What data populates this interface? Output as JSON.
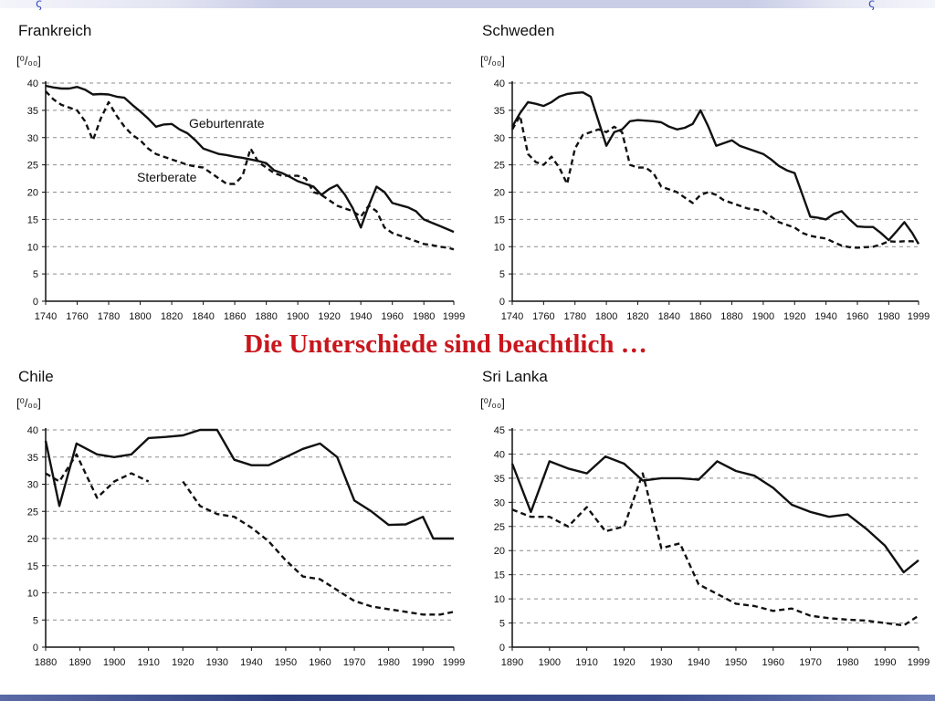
{
  "slide": {
    "caption": "Die Unterschiede sind beachtlich …",
    "colors": {
      "caption": "#c8161d",
      "line": "#111111",
      "grid": "#8c8c8c",
      "bar": "#2c3e7e"
    }
  },
  "chart_data": [
    {
      "type": "line",
      "title": "Frankreich",
      "unit": "[⁰/₀₀]",
      "xlim": [
        1740,
        1999
      ],
      "ylim": [
        0,
        40
      ],
      "x_ticks": [
        1740,
        1760,
        1780,
        1800,
        1820,
        1840,
        1860,
        1880,
        1900,
        1920,
        1940,
        1960,
        1980,
        1999
      ],
      "y_ticks": [
        0,
        5,
        10,
        15,
        20,
        25,
        30,
        35,
        40
      ],
      "grid": "horizontal dashed",
      "annotations": [
        "Geburtenrate",
        "Sterberate"
      ],
      "series": [
        {
          "name": "Geburtenrate",
          "style": "solid",
          "x": [
            1740,
            1745,
            1750,
            1755,
            1760,
            1765,
            1770,
            1775,
            1780,
            1785,
            1790,
            1795,
            1800,
            1805,
            1810,
            1815,
            1820,
            1825,
            1830,
            1835,
            1840,
            1845,
            1850,
            1855,
            1860,
            1865,
            1870,
            1875,
            1880,
            1885,
            1890,
            1895,
            1900,
            1905,
            1910,
            1915,
            1920,
            1925,
            1930,
            1935,
            1940,
            1945,
            1950,
            1955,
            1960,
            1965,
            1970,
            1975,
            1980,
            1985,
            1990,
            1995,
            1999
          ],
          "y": [
            39.5,
            39.2,
            39.0,
            39.0,
            39.3,
            38.8,
            37.9,
            38.0,
            37.9,
            37.5,
            37.3,
            36.0,
            34.8,
            33.5,
            32.0,
            32.4,
            32.5,
            31.5,
            30.8,
            29.5,
            28.0,
            27.5,
            27.0,
            26.8,
            26.5,
            26.3,
            26.0,
            25.7,
            25.3,
            24.0,
            23.5,
            22.8,
            22.0,
            21.5,
            21.0,
            19.5,
            20.6,
            21.3,
            19.5,
            17.0,
            13.5,
            17.5,
            21.0,
            20.0,
            18.0,
            17.6,
            17.2,
            16.5,
            15.0,
            14.4,
            13.8,
            13.2,
            12.7
          ]
        },
        {
          "name": "Sterberate",
          "style": "dashed",
          "x": [
            1740,
            1745,
            1750,
            1755,
            1760,
            1765,
            1770,
            1775,
            1780,
            1785,
            1790,
            1795,
            1800,
            1805,
            1810,
            1815,
            1820,
            1825,
            1830,
            1835,
            1840,
            1845,
            1850,
            1855,
            1860,
            1865,
            1870,
            1875,
            1880,
            1885,
            1890,
            1895,
            1900,
            1905,
            1910,
            1915,
            1920,
            1925,
            1930,
            1935,
            1940,
            1945,
            1950,
            1955,
            1960,
            1965,
            1970,
            1975,
            1980,
            1985,
            1990,
            1995,
            1999
          ],
          "y": [
            38.5,
            37.0,
            36.0,
            35.5,
            35.0,
            33.0,
            29.5,
            33.5,
            36.5,
            34.0,
            32.0,
            30.5,
            29.5,
            28.0,
            27.0,
            26.5,
            26.0,
            25.5,
            25.0,
            24.7,
            24.5,
            23.5,
            22.5,
            21.5,
            21.5,
            23.0,
            28.0,
            25.5,
            24.5,
            23.5,
            23.0,
            23.0,
            23.0,
            22.5,
            20.0,
            19.5,
            18.5,
            17.5,
            17.0,
            16.5,
            15.5,
            17.5,
            16.5,
            13.5,
            12.5,
            12.0,
            11.5,
            11.0,
            10.5,
            10.3,
            10.0,
            9.8,
            9.5
          ]
        }
      ]
    },
    {
      "type": "line",
      "title": "Schweden",
      "unit": "[⁰/₀₀]",
      "xlim": [
        1740,
        1999
      ],
      "ylim": [
        0,
        40
      ],
      "x_ticks": [
        1740,
        1760,
        1780,
        1800,
        1820,
        1840,
        1860,
        1880,
        1900,
        1920,
        1940,
        1960,
        1980,
        1999
      ],
      "y_ticks": [
        0,
        5,
        10,
        15,
        20,
        25,
        30,
        35,
        40
      ],
      "grid": "horizontal dashed",
      "series": [
        {
          "name": "Geburtenrate",
          "style": "solid",
          "x": [
            1740,
            1745,
            1750,
            1755,
            1760,
            1765,
            1770,
            1775,
            1780,
            1785,
            1790,
            1795,
            1800,
            1805,
            1810,
            1815,
            1820,
            1825,
            1830,
            1835,
            1840,
            1845,
            1850,
            1855,
            1860,
            1865,
            1870,
            1875,
            1880,
            1885,
            1890,
            1895,
            1900,
            1905,
            1910,
            1915,
            1920,
            1925,
            1930,
            1935,
            1940,
            1945,
            1950,
            1955,
            1960,
            1965,
            1970,
            1975,
            1980,
            1985,
            1990,
            1995,
            1999
          ],
          "y": [
            32.0,
            34.5,
            36.5,
            36.2,
            35.8,
            36.5,
            37.5,
            38.0,
            38.2,
            38.3,
            37.5,
            33.0,
            28.5,
            31.0,
            31.5,
            33.0,
            33.2,
            33.1,
            33.0,
            32.8,
            32.0,
            31.5,
            31.8,
            32.5,
            35.0,
            32.0,
            28.5,
            29.0,
            29.5,
            28.5,
            28.0,
            27.5,
            27.0,
            26.0,
            24.8,
            24.0,
            23.5,
            19.5,
            15.5,
            15.3,
            15.0,
            16.0,
            16.5,
            15.0,
            13.7,
            13.6,
            13.6,
            12.5,
            11.2,
            12.8,
            14.5,
            12.5,
            10.5
          ]
        },
        {
          "name": "Sterberate",
          "style": "dashed",
          "x": [
            1740,
            1745,
            1750,
            1755,
            1760,
            1765,
            1770,
            1775,
            1780,
            1785,
            1790,
            1795,
            1800,
            1805,
            1810,
            1815,
            1820,
            1825,
            1830,
            1835,
            1840,
            1845,
            1850,
            1855,
            1860,
            1865,
            1870,
            1875,
            1880,
            1885,
            1890,
            1895,
            1900,
            1905,
            1910,
            1915,
            1920,
            1925,
            1930,
            1935,
            1940,
            1945,
            1950,
            1955,
            1960,
            1965,
            1970,
            1975,
            1980,
            1985,
            1990,
            1995,
            1999
          ],
          "y": [
            31.5,
            34.0,
            27.0,
            25.5,
            25.0,
            26.5,
            24.5,
            21.5,
            28.0,
            30.5,
            31.0,
            31.5,
            31.0,
            32.0,
            31.0,
            25.0,
            24.5,
            24.5,
            23.5,
            21.0,
            20.5,
            20.0,
            19.0,
            18.0,
            19.5,
            20.0,
            19.5,
            18.5,
            18.0,
            17.5,
            17.0,
            16.8,
            16.5,
            15.5,
            14.5,
            14.0,
            13.5,
            12.5,
            12.0,
            11.7,
            11.5,
            10.8,
            10.2,
            9.9,
            9.8,
            9.9,
            10.0,
            10.4,
            11.0,
            10.9,
            11.0,
            11.0,
            10.7
          ]
        }
      ]
    },
    {
      "type": "line",
      "title": "Chile",
      "unit": "[⁰/₀₀]",
      "xlim": [
        1880,
        1999
      ],
      "ylim": [
        0,
        40
      ],
      "x_ticks": [
        1880,
        1890,
        1900,
        1910,
        1920,
        1930,
        1940,
        1950,
        1960,
        1970,
        1980,
        1990,
        1999
      ],
      "y_ticks": [
        0,
        5,
        10,
        15,
        20,
        25,
        30,
        35,
        40
      ],
      "grid": "horizontal dashed",
      "series": [
        {
          "name": "Geburtenrate",
          "style": "solid",
          "x": [
            1880,
            1884,
            1889,
            1895,
            1900,
            1905,
            1910,
            1915,
            1920,
            1925,
            1930,
            1935,
            1940,
            1945,
            1950,
            1955,
            1960,
            1965,
            1970,
            1975,
            1980,
            1985,
            1990,
            1993,
            1996,
            1999
          ],
          "y": [
            38.0,
            26.0,
            37.5,
            35.5,
            35.0,
            35.5,
            38.5,
            38.7,
            39.0,
            40.0,
            40.0,
            34.5,
            33.5,
            33.5,
            35.0,
            36.5,
            37.5,
            35.0,
            27.0,
            25.0,
            22.5,
            22.6,
            24.0,
            20.0,
            20.0,
            20.0
          ]
        },
        {
          "name": "Sterberate",
          "style": "dashed",
          "gap_after_x": 1910,
          "x": [
            1880,
            1884,
            1889,
            1895,
            1900,
            1905,
            1910,
            1920,
            1925,
            1930,
            1935,
            1940,
            1945,
            1950,
            1955,
            1960,
            1965,
            1970,
            1975,
            1980,
            1985,
            1990,
            1995,
            1999
          ],
          "y": [
            32.0,
            30.5,
            35.5,
            27.5,
            30.5,
            32.0,
            30.5,
            30.5,
            26.0,
            24.5,
            24.0,
            22.0,
            19.5,
            16.0,
            13.0,
            12.5,
            10.5,
            8.5,
            7.5,
            7.0,
            6.5,
            6.0,
            6.0,
            6.5
          ]
        }
      ]
    },
    {
      "type": "line",
      "title": "Sri Lanka",
      "unit": "[⁰/₀₀]",
      "xlim": [
        1890,
        1999
      ],
      "ylim": [
        0,
        45
      ],
      "x_ticks": [
        1890,
        1900,
        1910,
        1920,
        1930,
        1940,
        1950,
        1960,
        1970,
        1980,
        1990,
        1999
      ],
      "y_ticks": [
        0,
        5,
        10,
        15,
        20,
        25,
        30,
        35,
        40,
        45
      ],
      "grid": "horizontal dashed",
      "series": [
        {
          "name": "Geburtenrate",
          "style": "solid",
          "x": [
            1890,
            1895,
            1900,
            1905,
            1910,
            1915,
            1920,
            1925,
            1930,
            1935,
            1940,
            1945,
            1950,
            1955,
            1960,
            1965,
            1970,
            1975,
            1980,
            1985,
            1990,
            1995,
            1999
          ],
          "y": [
            38.0,
            28.0,
            38.5,
            37.0,
            36.0,
            39.5,
            38.0,
            34.5,
            35.0,
            35.0,
            34.7,
            38.5,
            36.5,
            35.5,
            33.0,
            29.5,
            28.0,
            27.0,
            27.5,
            24.5,
            21.0,
            15.5,
            18.0
          ]
        },
        {
          "name": "Sterberate",
          "style": "dashed",
          "x": [
            1890,
            1895,
            1900,
            1905,
            1910,
            1915,
            1920,
            1925,
            1930,
            1935,
            1940,
            1945,
            1950,
            1955,
            1960,
            1965,
            1970,
            1975,
            1980,
            1985,
            1990,
            1995,
            1999
          ],
          "y": [
            28.5,
            27.0,
            27.0,
            25.0,
            29.0,
            24.0,
            25.0,
            36.0,
            20.5,
            21.5,
            13.0,
            11.0,
            9.0,
            8.5,
            7.5,
            8.0,
            6.5,
            6.0,
            5.7,
            5.5,
            5.0,
            4.5,
            6.5
          ]
        }
      ]
    }
  ]
}
